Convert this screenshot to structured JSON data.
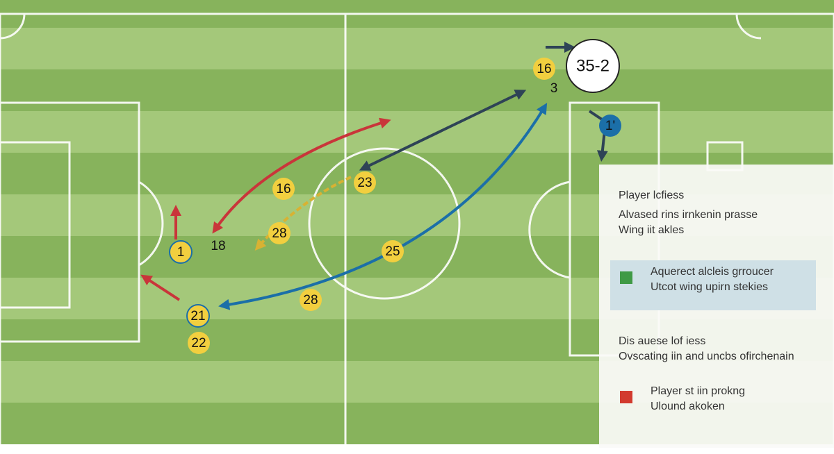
{
  "score_badge": "35-2",
  "players": [
    "16",
    "3",
    "16",
    "23",
    "28",
    "1",
    "18",
    "25",
    "28",
    "21",
    "22",
    "1'"
  ],
  "panel": {
    "title": "Player lcfiess",
    "lines": [
      "Alvased rins irnkenin prasse",
      "Wing iit akles"
    ],
    "legend": [
      {
        "color": "#3f9a45",
        "lines": [
          "Aquerect alcleis grroucer",
          "Utcot wing upirn stekies"
        ]
      },
      {
        "color": null,
        "lines": [
          "Dis auese lof iess",
          "Ovscating iin and uncbs ofirchenain"
        ]
      },
      {
        "color": "#d23a2e",
        "lines": [
          "Player st iin prokng",
          "Ulound akoken"
        ]
      }
    ]
  }
}
